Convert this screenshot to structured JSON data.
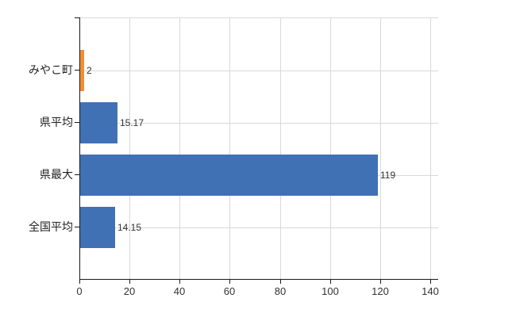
{
  "chart_data": {
    "type": "bar",
    "orientation": "horizontal",
    "categories": [
      "みやこ町",
      "県平均",
      "県最大",
      "全国平均"
    ],
    "values": [
      2,
      15.17,
      119,
      14.15
    ],
    "value_labels": [
      "2",
      "15.17",
      "119",
      "14.15"
    ],
    "bar_colors": [
      "#f28d35",
      "#4071b5",
      "#4071b5",
      "#4071b5"
    ],
    "xlim": [
      0,
      140
    ],
    "x_ticks": [
      0,
      20,
      40,
      60,
      80,
      100,
      120,
      140
    ],
    "x_tick_labels": [
      "0",
      "20",
      "40",
      "60",
      "80",
      "100",
      "120",
      "140"
    ],
    "grid": true,
    "legend_position": "none",
    "title": "",
    "xlabel": "",
    "ylabel": ""
  },
  "colors": {
    "bar_orange": "#f28d35",
    "bar_blue": "#4071b5",
    "grid": "#d9d9d9",
    "axis": "#1a1a1a",
    "text": "#333333",
    "background": "#ffffff"
  }
}
